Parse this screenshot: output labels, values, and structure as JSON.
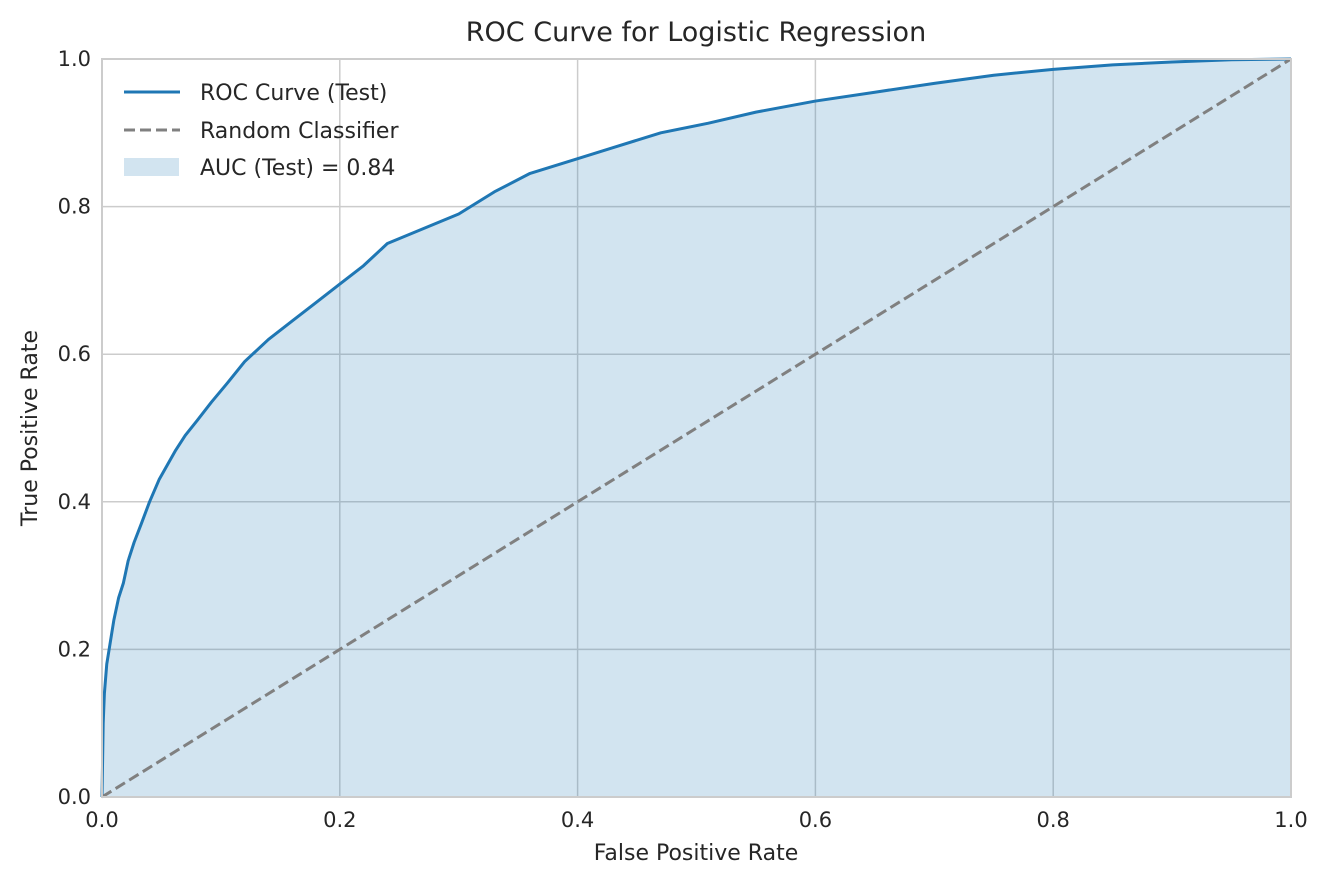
{
  "chart_data": {
    "type": "line",
    "title": "ROC Curve for Logistic Regression",
    "xlabel": "False Positive Rate",
    "ylabel": "True Positive Rate",
    "xlim": [
      0.0,
      1.0
    ],
    "ylim": [
      0.0,
      1.0
    ],
    "grid": true,
    "legend_position": "top-left",
    "x_ticks": [
      "0.0",
      "0.2",
      "0.4",
      "0.6",
      "0.8",
      "1.0"
    ],
    "y_ticks": [
      "0.0",
      "0.2",
      "0.4",
      "0.6",
      "0.8",
      "1.0"
    ],
    "series": [
      {
        "name": "ROC Curve (Test)",
        "style": "solid",
        "color": "#1f77b4",
        "x": [
          0.0,
          0.001,
          0.002,
          0.004,
          0.007,
          0.01,
          0.014,
          0.018,
          0.022,
          0.027,
          0.033,
          0.04,
          0.048,
          0.055,
          0.062,
          0.07,
          0.08,
          0.092,
          0.105,
          0.12,
          0.14,
          0.16,
          0.18,
          0.2,
          0.22,
          0.24,
          0.27,
          0.3,
          0.33,
          0.36,
          0.4,
          0.43,
          0.47,
          0.51,
          0.55,
          0.6,
          0.65,
          0.7,
          0.75,
          0.8,
          0.85,
          0.9,
          0.95,
          1.0
        ],
        "y": [
          0.0,
          0.1,
          0.14,
          0.18,
          0.21,
          0.24,
          0.27,
          0.29,
          0.32,
          0.345,
          0.37,
          0.4,
          0.43,
          0.45,
          0.47,
          0.49,
          0.51,
          0.535,
          0.56,
          0.59,
          0.62,
          0.645,
          0.67,
          0.695,
          0.72,
          0.75,
          0.77,
          0.79,
          0.82,
          0.845,
          0.865,
          0.88,
          0.9,
          0.913,
          0.928,
          0.943,
          0.955,
          0.967,
          0.978,
          0.986,
          0.992,
          0.996,
          0.999,
          1.0
        ]
      },
      {
        "name": "Random Classifier",
        "style": "dashed",
        "color": "#808080",
        "x": [
          0.0,
          1.0
        ],
        "y": [
          0.0,
          1.0
        ]
      }
    ],
    "fill": {
      "name": "AUC (Test) = 0.84",
      "color": "#1f77b4",
      "opacity": 0.2,
      "under_series": "ROC Curve (Test)"
    }
  }
}
